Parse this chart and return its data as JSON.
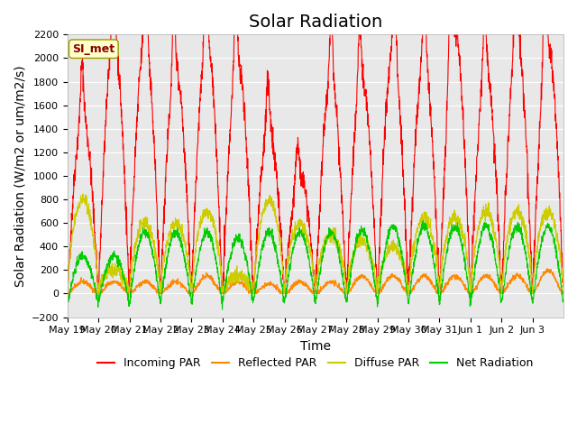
{
  "title": "Solar Radiation",
  "ylabel": "Solar Radiation (W/m2 or um/m2/s)",
  "xlabel": "Time",
  "ylim": [
    -200,
    2200
  ],
  "yticks": [
    -200,
    0,
    200,
    400,
    600,
    800,
    1000,
    1200,
    1400,
    1600,
    1800,
    2000,
    2200
  ],
  "bg_color": "#e8e8e8",
  "legend_label": "SI_met",
  "series_colors": {
    "incoming": "#ff0000",
    "reflected": "#ff8800",
    "diffuse": "#cccc00",
    "net": "#00cc00"
  },
  "series_labels": [
    "Incoming PAR",
    "Reflected PAR",
    "Diffuse PAR",
    "Net Radiation"
  ],
  "x_tick_labels": [
    "May 19",
    "May 20",
    "May 21",
    "May 22",
    "May 23",
    "May 24",
    "May 25",
    "May 26",
    "May 27",
    "May 28",
    "May 29",
    "May 30",
    "May 31",
    "Jun 1",
    "Jun 2",
    "Jun 3"
  ],
  "n_days": 16,
  "title_fontsize": 14,
  "axis_label_fontsize": 10,
  "tick_fontsize": 8
}
